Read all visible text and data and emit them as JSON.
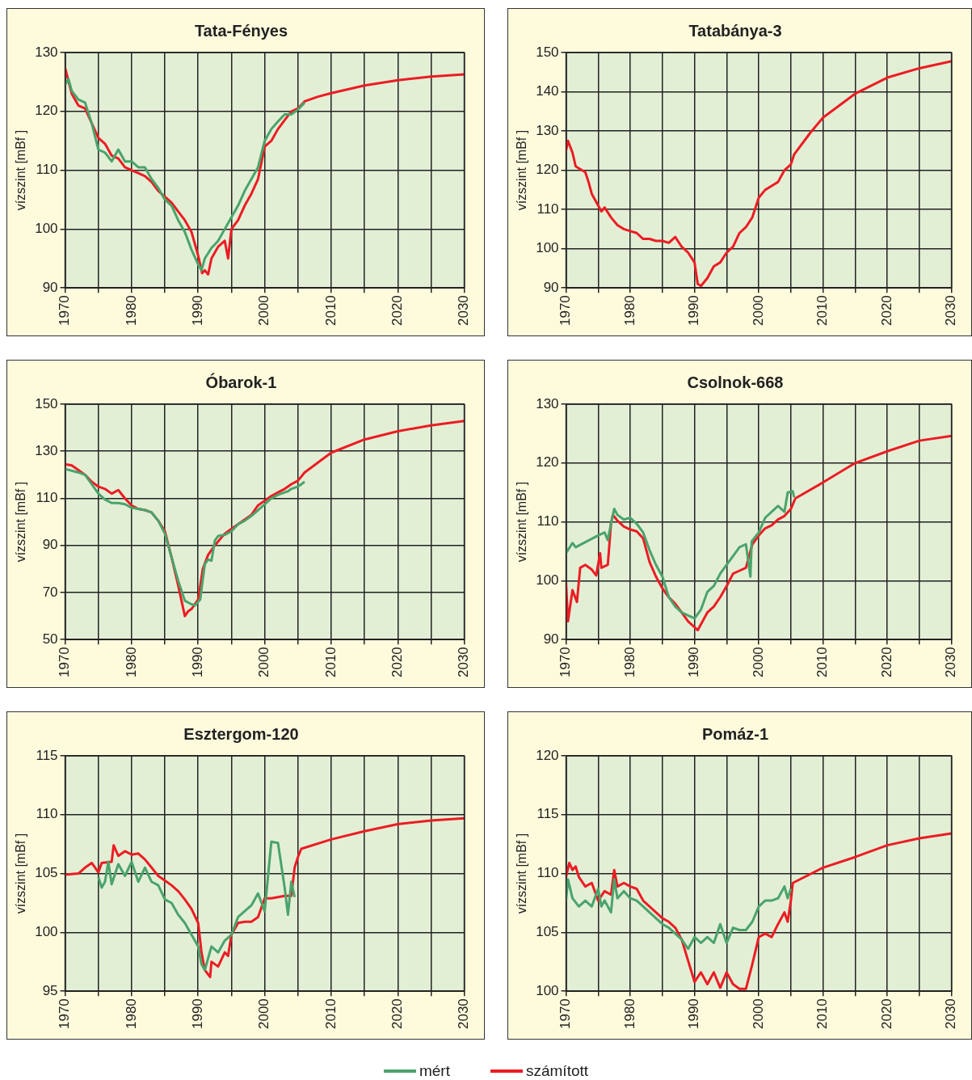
{
  "chart_data": [
    {
      "type": "line",
      "title": "Tata-Fényes",
      "ylabel": "vízszint [mBf ]",
      "xlim": [
        1970,
        2030
      ],
      "xticks": [
        1970,
        {
          "value": 1975,
          "label": null
        },
        1980,
        {
          "value": 1985,
          "label": null
        },
        1990,
        {
          "value": 1995,
          "label": null
        },
        2000,
        {
          "value": 2005,
          "label": null
        },
        2010,
        {
          "value": 2015,
          "label": null
        },
        2020,
        {
          "value": 2025,
          "label": null
        },
        2030
      ],
      "ylim": [
        90,
        130
      ],
      "yticks": [
        90,
        100,
        110,
        120,
        130
      ],
      "grid": true,
      "legend": "bottom",
      "line_style": "solid",
      "series": [
        {
          "name": "mért",
          "color": "#4aa36b",
          "x": [
            1970,
            1970.5,
            1971,
            1972,
            1973,
            1974,
            1975,
            1976,
            1977,
            1978,
            1979,
            1980,
            1981,
            1982,
            1983,
            1984,
            1985,
            1986,
            1987,
            1988,
            1989,
            1990,
            1990.5,
            1991,
            1992,
            1993,
            1994,
            1995,
            1996,
            1997,
            1998,
            1999,
            2000,
            2001,
            2002,
            2003,
            2004,
            2005,
            2006
          ],
          "values": [
            124.5,
            125.5,
            123.5,
            122,
            121.5,
            118,
            113.5,
            113,
            111.5,
            113.5,
            111.5,
            111.5,
            110.5,
            110.5,
            108.5,
            107,
            105,
            104,
            101.5,
            99.5,
            96.5,
            94,
            93,
            95,
            96.8,
            98,
            100,
            102,
            104,
            106.5,
            108.5,
            110.5,
            115,
            117,
            118.3,
            119.5,
            119.5,
            120.3,
            121.5
          ]
        },
        {
          "name": "számított",
          "color": "#ec1c24",
          "x": [
            1970,
            1971,
            1972,
            1973,
            1974,
            1975,
            1976,
            1977,
            1978,
            1979,
            1980,
            1981,
            1982,
            1983,
            1984,
            1985,
            1986,
            1987,
            1988,
            1989,
            1990,
            1990.6,
            1991,
            1991.5,
            1992,
            1993,
            1994,
            1994.5,
            1995,
            1996,
            1997,
            1998,
            1999,
            2000,
            2001,
            2002,
            2003,
            2004,
            2005,
            2006,
            2008,
            2010,
            2015,
            2020,
            2025,
            2030
          ],
          "values": [
            127.4,
            123,
            121,
            120.5,
            118,
            115.5,
            114.5,
            112.5,
            112,
            110.5,
            110,
            109.5,
            109,
            108,
            106.5,
            105.5,
            104.5,
            103,
            101.5,
            99.5,
            95.5,
            92.5,
            93,
            92.3,
            95,
            97,
            98,
            95,
            100,
            101.5,
            104,
            106,
            108.5,
            114,
            115,
            117,
            118.5,
            120,
            120.5,
            121.7,
            122.5,
            123.1,
            124.4,
            125.3,
            125.9,
            126.3
          ]
        }
      ]
    },
    {
      "type": "line",
      "title": "Tatabánya-3",
      "ylabel": "vízszint [mBf ]",
      "xlim": [
        1970,
        2030
      ],
      "xticks": [
        1970,
        {
          "value": 1975,
          "label": null
        },
        1980,
        {
          "value": 1985,
          "label": null
        },
        1990,
        {
          "value": 1995,
          "label": null
        },
        2000,
        {
          "value": 2005,
          "label": null
        },
        2010,
        {
          "value": 2015,
          "label": null
        },
        2020,
        {
          "value": 2025,
          "label": null
        },
        2030
      ],
      "ylim": [
        90,
        150
      ],
      "yticks": [
        90,
        100,
        110,
        120,
        130,
        140,
        150
      ],
      "grid": true,
      "legend": "bottom",
      "line_style": "solid",
      "series": [
        {
          "name": "számított",
          "color": "#ec1c24",
          "x": [
            1970,
            1970.3,
            1971,
            1971.5,
            1972,
            1973,
            1973.5,
            1974,
            1975,
            1975.5,
            1976,
            1977,
            1978,
            1979,
            1980,
            1981,
            1982,
            1983,
            1984,
            1985,
            1986,
            1987,
            1988,
            1989,
            1990,
            1990.5,
            1991,
            1992,
            1993,
            1994,
            1995,
            1996,
            1997,
            1998,
            1999,
            2000,
            2001,
            2002,
            2003,
            2004,
            2005,
            2005.5,
            2008,
            2010,
            2015,
            2020,
            2025,
            2030
          ],
          "values": [
            125,
            127.5,
            124.5,
            121,
            120.5,
            119.5,
            117,
            114,
            111,
            109.5,
            110.5,
            108,
            106,
            105,
            104.5,
            104,
            102.5,
            102.5,
            102,
            102,
            101.5,
            103,
            100.5,
            99,
            96.5,
            91,
            90.5,
            92.5,
            95.5,
            96.5,
            99,
            100.5,
            104,
            105.5,
            108,
            113,
            115,
            116,
            117,
            120,
            121.5,
            124,
            129.5,
            133.4,
            139.5,
            143.6,
            146,
            147.8
          ]
        }
      ]
    },
    {
      "type": "line",
      "title": "Óbarok-1",
      "ylabel": "vízszint [mBf ]",
      "xlim": [
        1970,
        2030
      ],
      "xticks": [
        1970,
        {
          "value": 1975,
          "label": null
        },
        1980,
        {
          "value": 1985,
          "label": null
        },
        1990,
        {
          "value": 1995,
          "label": null
        },
        2000,
        {
          "value": 2005,
          "label": null
        },
        2010,
        {
          "value": 2015,
          "label": null
        },
        2020,
        {
          "value": 2025,
          "label": null
        },
        2030
      ],
      "ylim": [
        50,
        150
      ],
      "yticks": [
        50,
        70,
        90,
        110,
        130,
        150
      ],
      "grid": true,
      "legend": "bottom",
      "line_style": "solid",
      "series": [
        {
          "name": "mért",
          "color": "#4aa36b",
          "x": [
            1970,
            1972,
            1973,
            1974,
            1975,
            1976,
            1977,
            1978,
            1979,
            1980,
            1981,
            1982,
            1983,
            1984,
            1985,
            1986,
            1987,
            1988,
            1989,
            1989.5,
            1990.3,
            1991,
            1991.5,
            1992,
            1992.5,
            1993,
            1994,
            1995,
            1996,
            1997,
            1998,
            2000,
            2001,
            2002,
            2003,
            2003.5,
            2004,
            2005,
            2006
          ],
          "values": [
            122.5,
            121,
            120,
            116,
            112,
            109.5,
            108,
            108,
            107.5,
            106,
            105.5,
            105,
            104,
            100.5,
            95,
            85,
            75,
            66.5,
            65,
            64.5,
            67,
            82,
            84,
            83.5,
            92,
            94,
            94.5,
            96,
            99,
            100.5,
            102.5,
            107.5,
            110,
            111.5,
            112.5,
            113,
            114,
            115,
            117
          ]
        },
        {
          "name": "számított",
          "color": "#ec1c24",
          "x": [
            1970,
            1971,
            1972,
            1973,
            1974,
            1975,
            1976,
            1977,
            1978,
            1979,
            1980,
            1981,
            1982,
            1983,
            1984,
            1985,
            1986,
            1987,
            1988,
            1988.5,
            1989,
            1990,
            1990.7,
            1991.5,
            1992.5,
            1994,
            1995,
            1996,
            1997,
            1998,
            1999,
            2000,
            2001,
            2002,
            2003,
            2004,
            2005,
            2006,
            2010,
            2015,
            2020,
            2025,
            2030
          ],
          "values": [
            124.5,
            124,
            122,
            120,
            117,
            115,
            114,
            112,
            113.5,
            110,
            107,
            105.5,
            105,
            104,
            100.5,
            96,
            85,
            73,
            60,
            62,
            63,
            67,
            80,
            86,
            90,
            95,
            97,
            99,
            101,
            103,
            107,
            109,
            111,
            112.5,
            114,
            116,
            117.5,
            121,
            129.4,
            135,
            138.5,
            141,
            142.9
          ]
        }
      ]
    },
    {
      "type": "line",
      "title": "Csolnok-668",
      "ylabel": "vízszint [mBf ]",
      "xlim": [
        1970,
        2030
      ],
      "xticks": [
        1970,
        {
          "value": 1975,
          "label": null
        },
        1980,
        {
          "value": 1985,
          "label": null
        },
        1990,
        {
          "value": 1995,
          "label": null
        },
        2000,
        {
          "value": 2005,
          "label": null
        },
        2010,
        {
          "value": 2015,
          "label": null
        },
        2020,
        {
          "value": 2025,
          "label": null
        },
        2030
      ],
      "ylim": [
        90,
        130
      ],
      "yticks": [
        90,
        100,
        110,
        120,
        130
      ],
      "grid": true,
      "legend": "bottom",
      "line_style": "solid",
      "series": [
        {
          "name": "mért",
          "color": "#4aa36b",
          "x": [
            1970,
            1971,
            1971.5,
            1975,
            1976,
            1976.5,
            1977,
            1977.5,
            1978,
            1979,
            1980,
            1981,
            1982,
            1983,
            1984,
            1985,
            1986,
            1987,
            1988,
            1989,
            1990,
            1991,
            1992,
            1993,
            1994,
            1995,
            1996,
            1997,
            1998,
            1998.7,
            1998.9,
            2000,
            2001,
            2002,
            2003,
            2004,
            2004.5,
            2005.3,
            2005.5
          ],
          "values": [
            104.7,
            106.4,
            105.7,
            107.7,
            108.2,
            106.9,
            109.7,
            112.2,
            111.2,
            110.4,
            110.7,
            109.7,
            108.2,
            105.2,
            102.7,
            100.7,
            97.2,
            95.6,
            94.6,
            94.1,
            93.6,
            95.1,
            98.1,
            99.1,
            101.2,
            102.7,
            104.2,
            105.7,
            106.2,
            100.7,
            106.7,
            108.2,
            110.7,
            111.7,
            112.7,
            111.7,
            115,
            115.2,
            114.2
          ]
        },
        {
          "name": "számított",
          "color": "#ec1c24",
          "x": [
            1970,
            1970.3,
            1971,
            1971.7,
            1972.2,
            1973,
            1974,
            1974.7,
            1975.3,
            1975.5,
            1976.5,
            1977,
            1977.3,
            1978,
            1979,
            1980,
            1981,
            1982,
            1983,
            1984,
            1985,
            1986,
            1987,
            1988,
            1989,
            1990,
            1990.5,
            1991,
            1992,
            1993,
            1994,
            1995,
            1996,
            1997,
            1998,
            1999,
            2000,
            2001,
            2002,
            2003,
            2004,
            2005,
            2005.7,
            2010,
            2015,
            2020,
            2025,
            2030
          ],
          "values": [
            99.6,
            93.1,
            98.4,
            96.4,
            102.2,
            102.7,
            101.9,
            100.9,
            104.7,
            102.2,
            102.7,
            109.7,
            111.2,
            110.2,
            109.2,
            108.7,
            108.4,
            107.2,
            103.2,
            100.7,
            98.7,
            97.2,
            96.1,
            94.6,
            93.1,
            92.1,
            91.6,
            92.6,
            94.6,
            95.6,
            97.2,
            99.1,
            101.2,
            101.7,
            102.2,
            106.2,
            107.7,
            108.9,
            109.4,
            110.4,
            111,
            112.2,
            114,
            116.7,
            120,
            122,
            123.8,
            124.6
          ]
        }
      ]
    },
    {
      "type": "line",
      "title": "Esztergom-120",
      "ylabel": "vízszint [mBf ]",
      "xlim": [
        1970,
        2030
      ],
      "xticks": [
        1970,
        {
          "value": 1975,
          "label": null
        },
        1980,
        {
          "value": 1985,
          "label": null
        },
        1990,
        {
          "value": 1995,
          "label": null
        },
        2000,
        {
          "value": 2005,
          "label": null
        },
        2010,
        {
          "value": 2015,
          "label": null
        },
        2020,
        {
          "value": 2025,
          "label": null
        },
        2030
      ],
      "ylim": [
        95,
        115
      ],
      "yticks": [
        95,
        100,
        105,
        110,
        115
      ],
      "grid": true,
      "legend": "bottom",
      "line_style": "solid",
      "series": [
        {
          "name": "mért",
          "color": "#4aa36b",
          "x": [
            1975,
            1975.5,
            1976,
            1976.5,
            1977,
            1978,
            1979,
            1980,
            1981,
            1982,
            1983,
            1984,
            1985,
            1986,
            1987,
            1988,
            1989,
            1990,
            1990.5,
            1991,
            1992,
            1993,
            1994,
            1995,
            1996,
            1997,
            1998,
            1999,
            2000,
            2001,
            2002,
            2003,
            2003.5,
            2004,
            2004.5
          ],
          "values": [
            104.7,
            103.8,
            104.3,
            106,
            104.1,
            105.8,
            104.8,
            106,
            104.3,
            105.5,
            104.3,
            104,
            102.8,
            102.5,
            101.5,
            100.8,
            99.8,
            98.8,
            97.3,
            96.8,
            98.8,
            98.3,
            99.3,
            99.8,
            101.3,
            101.8,
            102.3,
            103.3,
            101.8,
            107.7,
            107.6,
            103.8,
            101.5,
            104.3,
            103
          ]
        },
        {
          "name": "számított",
          "color": "#ec1c24",
          "x": [
            1970,
            1972,
            1973,
            1974,
            1975,
            1975.5,
            1977,
            1977.3,
            1978,
            1979,
            1980,
            1981,
            1982,
            1983,
            1984,
            1985,
            1986,
            1987,
            1988,
            1989,
            1990,
            1990.5,
            1991,
            1991.8,
            1992,
            1993,
            1994,
            1994.5,
            1995,
            1996,
            1997,
            1998,
            1999,
            2000,
            2001,
            2002,
            2003,
            2004,
            2004.5,
            2005,
            2005.5,
            2010,
            2015,
            2020,
            2025,
            2030
          ],
          "values": [
            104.9,
            105,
            105.5,
            105.9,
            105.1,
            105.9,
            106,
            107.4,
            106.5,
            106.9,
            106.6,
            106.7,
            106.2,
            105.5,
            104.8,
            104.4,
            104,
            103.5,
            102.8,
            102,
            100.8,
            98.3,
            96.8,
            96.2,
            97.5,
            97.1,
            98.3,
            98,
            99.8,
            100.8,
            100.9,
            100.9,
            101.3,
            102.9,
            102.9,
            103,
            103.1,
            103.1,
            105.5,
            106.4,
            107.1,
            107.9,
            108.6,
            109.2,
            109.5,
            109.7
          ]
        }
      ]
    },
    {
      "type": "line",
      "title": "Pomáz-1",
      "ylabel": "vízszint [mBf ]",
      "xlim": [
        1970,
        2030
      ],
      "xticks": [
        1970,
        {
          "value": 1975,
          "label": null
        },
        1980,
        {
          "value": 1985,
          "label": null
        },
        1990,
        {
          "value": 1995,
          "label": null
        },
        2000,
        {
          "value": 2005,
          "label": null
        },
        2010,
        {
          "value": 2015,
          "label": null
        },
        2020,
        {
          "value": 2025,
          "label": null
        },
        2030
      ],
      "ylim": [
        100,
        120
      ],
      "yticks": [
        100,
        105,
        110,
        115,
        120
      ],
      "grid": true,
      "legend": "bottom",
      "line_style": "solid",
      "series": [
        {
          "name": "mért",
          "color": "#4aa36b",
          "x": [
            1970,
            1970.3,
            1971,
            1972,
            1973,
            1974,
            1975,
            1975.5,
            1976,
            1977,
            1977.5,
            1978,
            1979,
            1980,
            1981,
            1982,
            1983,
            1984,
            1985,
            1986,
            1987,
            1988,
            1989,
            1990,
            1991,
            1992,
            1993,
            1994,
            1995,
            1996,
            1997,
            1998,
            1999,
            2000,
            2001,
            2002,
            2003,
            2004,
            2004.5,
            2005
          ],
          "values": [
            107.7,
            109.5,
            107.9,
            107.2,
            107.7,
            107.2,
            108.7,
            107.2,
            107.7,
            106.7,
            109.5,
            107.9,
            108.5,
            107.9,
            107.7,
            107.2,
            106.7,
            106.2,
            105.7,
            105.4,
            104.9,
            104.4,
            103.6,
            104.6,
            104.1,
            104.6,
            104.1,
            105.7,
            104.1,
            105.4,
            105.2,
            105.2,
            105.9,
            107.2,
            107.7,
            107.7,
            107.9,
            108.9,
            107.9,
            108.7
          ]
        },
        {
          "name": "számított",
          "color": "#ec1c24",
          "x": [
            1970,
            1970.5,
            1971,
            1971.5,
            1972,
            1973,
            1974,
            1975,
            1976,
            1977,
            1977.5,
            1978,
            1979,
            1980,
            1981,
            1982,
            1983,
            1984,
            1985,
            1986,
            1987,
            1988,
            1989,
            1990,
            1991,
            1992,
            1993,
            1994,
            1995,
            1996,
            1997,
            1998,
            1999,
            2000,
            2001,
            2002,
            2003,
            2004,
            2004.5,
            2005,
            2005.3,
            2010,
            2015,
            2020,
            2025,
            2030
          ],
          "values": [
            109.7,
            110.9,
            110.3,
            110.6,
            109.7,
            108.9,
            109.2,
            107.7,
            108.5,
            108.2,
            110.3,
            108.9,
            109.2,
            108.9,
            108.7,
            107.7,
            107.2,
            106.7,
            106.2,
            105.9,
            105.4,
            104.4,
            102.6,
            100.8,
            101.6,
            100.6,
            101.6,
            100.3,
            101.6,
            100.6,
            100.2,
            100.2,
            102.3,
            104.6,
            104.9,
            104.6,
            105.7,
            106.7,
            105.9,
            107.7,
            109.2,
            110.5,
            111.4,
            112.4,
            113,
            113.4
          ]
        }
      ]
    }
  ]
}
